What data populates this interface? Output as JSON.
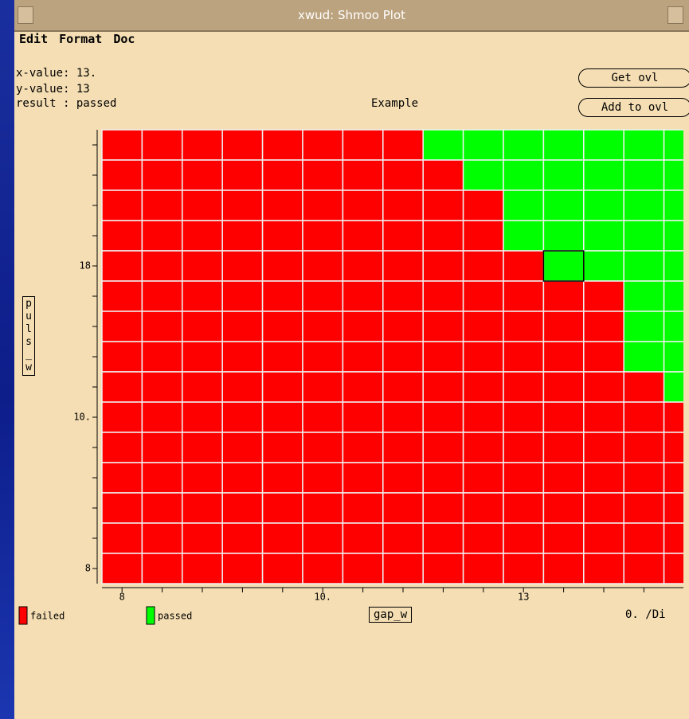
{
  "window": {
    "title": "xwud: Shmoo Plot"
  },
  "menu": [
    "Edit",
    "Format",
    "Doc"
  ],
  "info": [
    "x-value: 13.",
    "y-value: 13",
    "result : passed"
  ],
  "buttons": [
    "Get ovl",
    "Add to ovl"
  ],
  "footer_text": "0. /Di",
  "chart_data": {
    "type": "shmoo",
    "title": "Example",
    "x_label": "gap_w",
    "y_label": "puls_w",
    "categories": [
      "8",
      null,
      null,
      null,
      null,
      "10.",
      null,
      null,
      null,
      null,
      "13",
      null,
      null,
      null,
      null
    ],
    "y_categories": [
      null,
      null,
      null,
      null,
      "18",
      null,
      null,
      null,
      null,
      "10.",
      null,
      null,
      null,
      null,
      "8"
    ],
    "series": [
      {
        "name": "failed",
        "color": "#ff0000"
      },
      {
        "name": "passed",
        "color": "#00ff00"
      }
    ],
    "results": [
      [
        "failed",
        "failed",
        "failed",
        "failed",
        "failed",
        "failed",
        "failed",
        "failed",
        "passed",
        "passed",
        "passed",
        "passed",
        "passed",
        "passed",
        "passed"
      ],
      [
        "failed",
        "failed",
        "failed",
        "failed",
        "failed",
        "failed",
        "failed",
        "failed",
        "failed",
        "passed",
        "passed",
        "passed",
        "passed",
        "passed",
        "passed"
      ],
      [
        "failed",
        "failed",
        "failed",
        "failed",
        "failed",
        "failed",
        "failed",
        "failed",
        "failed",
        "failed",
        "passed",
        "passed",
        "passed",
        "passed",
        "passed"
      ],
      [
        "failed",
        "failed",
        "failed",
        "failed",
        "failed",
        "failed",
        "failed",
        "failed",
        "failed",
        "failed",
        "passed",
        "passed",
        "passed",
        "passed",
        "passed"
      ],
      [
        "failed",
        "failed",
        "failed",
        "failed",
        "failed",
        "failed",
        "failed",
        "failed",
        "failed",
        "failed",
        "failed",
        "passed",
        "passed",
        "passed",
        "passed"
      ],
      [
        "failed",
        "failed",
        "failed",
        "failed",
        "failed",
        "failed",
        "failed",
        "failed",
        "failed",
        "failed",
        "failed",
        "failed",
        "failed",
        "passed",
        "passed"
      ],
      [
        "failed",
        "failed",
        "failed",
        "failed",
        "failed",
        "failed",
        "failed",
        "failed",
        "failed",
        "failed",
        "failed",
        "failed",
        "failed",
        "passed",
        "passed"
      ],
      [
        "failed",
        "failed",
        "failed",
        "failed",
        "failed",
        "failed",
        "failed",
        "failed",
        "failed",
        "failed",
        "failed",
        "failed",
        "failed",
        "passed",
        "passed"
      ],
      [
        "failed",
        "failed",
        "failed",
        "failed",
        "failed",
        "failed",
        "failed",
        "failed",
        "failed",
        "failed",
        "failed",
        "failed",
        "failed",
        "failed",
        "passed"
      ],
      [
        "failed",
        "failed",
        "failed",
        "failed",
        "failed",
        "failed",
        "failed",
        "failed",
        "failed",
        "failed",
        "failed",
        "failed",
        "failed",
        "failed",
        "failed"
      ],
      [
        "failed",
        "failed",
        "failed",
        "failed",
        "failed",
        "failed",
        "failed",
        "failed",
        "failed",
        "failed",
        "failed",
        "failed",
        "failed",
        "failed",
        "failed"
      ],
      [
        "failed",
        "failed",
        "failed",
        "failed",
        "failed",
        "failed",
        "failed",
        "failed",
        "failed",
        "failed",
        "failed",
        "failed",
        "failed",
        "failed",
        "failed"
      ],
      [
        "failed",
        "failed",
        "failed",
        "failed",
        "failed",
        "failed",
        "failed",
        "failed",
        "failed",
        "failed",
        "failed",
        "failed",
        "failed",
        "failed",
        "failed"
      ],
      [
        "failed",
        "failed",
        "failed",
        "failed",
        "failed",
        "failed",
        "failed",
        "failed",
        "failed",
        "failed",
        "failed",
        "failed",
        "failed",
        "failed",
        "failed"
      ],
      [
        "failed",
        "failed",
        "failed",
        "failed",
        "failed",
        "failed",
        "failed",
        "failed",
        "failed",
        "failed",
        "failed",
        "failed",
        "failed",
        "failed",
        "failed"
      ]
    ]
  }
}
